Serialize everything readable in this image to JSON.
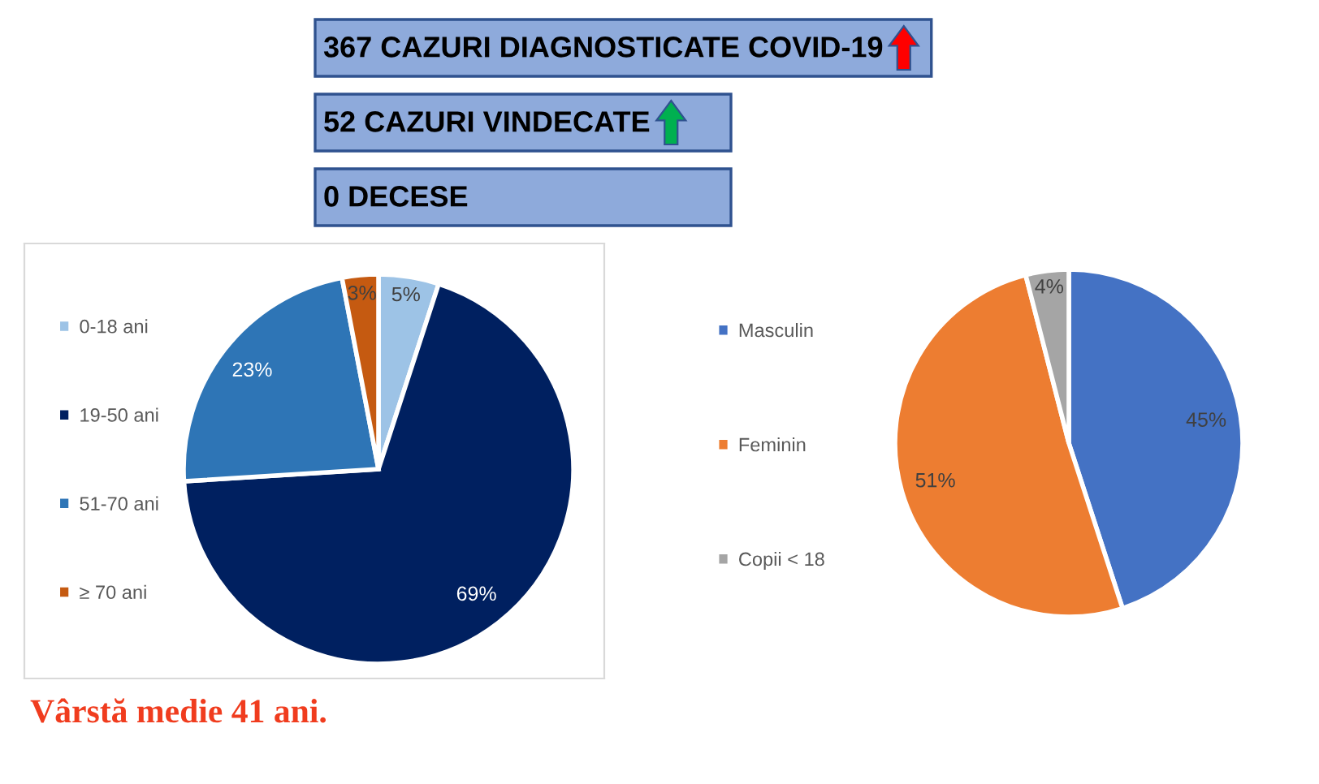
{
  "chart_data": [
    {
      "type": "other",
      "annotations": [
        "367 CAZURI DIAGNOSTICATE COVID-19",
        "52 CAZURI VINDECATE",
        "0 DECESE"
      ]
    },
    {
      "type": "pie",
      "categories": [
        "0-18 ani",
        "19-50 ani",
        "51-70 ani",
        "≥ 70 ani"
      ],
      "values": [
        5,
        69,
        23,
        3
      ],
      "colors": [
        "#9dc3e6",
        "#002060",
        "#2e75b6",
        "#c55a11"
      ],
      "value_labels": [
        "5%",
        "69%",
        "23%",
        "3%"
      ],
      "legend": "left",
      "annotations": [
        "Vârstă medie 41 ani."
      ]
    },
    {
      "type": "pie",
      "categories": [
        "Masculin",
        "Feminin",
        "Copii < 18"
      ],
      "values": [
        45,
        51,
        4
      ],
      "colors": [
        "#4472c4",
        "#ed7d31",
        "#a5a5a5"
      ],
      "value_labels": [
        "45%",
        "51%",
        "4%"
      ],
      "legend": "left"
    }
  ]
}
